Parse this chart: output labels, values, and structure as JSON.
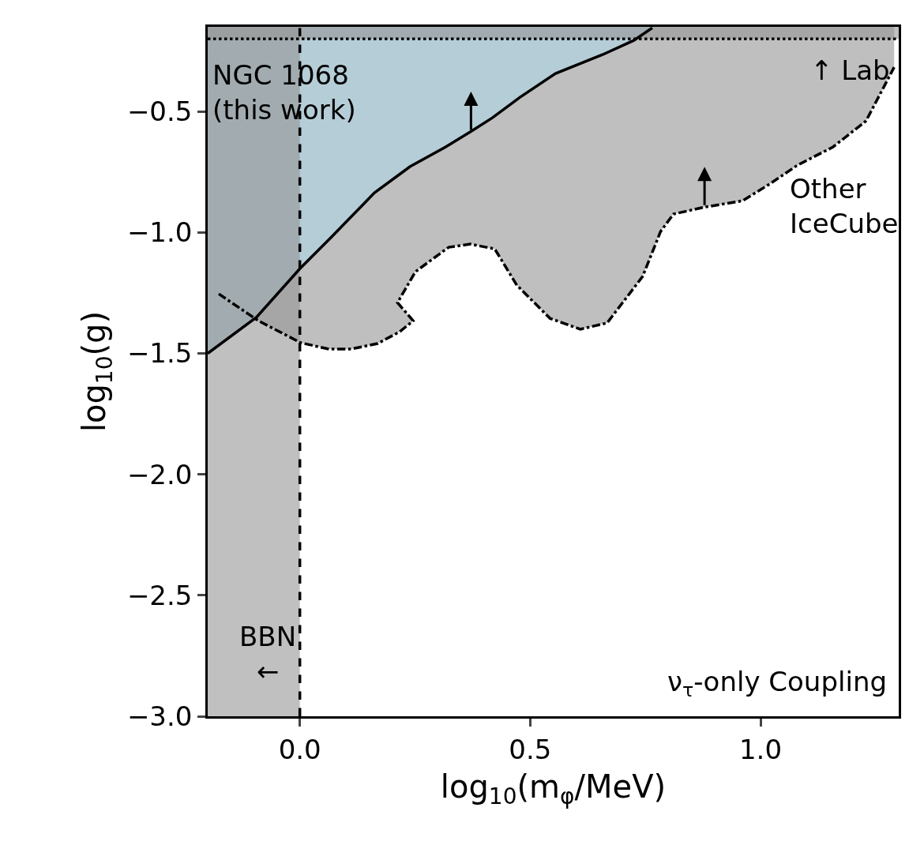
{
  "chart_data": {
    "type": "area",
    "xlabel": "log$_{10}$(m$_{φ}$/MeV)",
    "ylabel": "log$_{10}$(g)",
    "xlim": [
      -0.2,
      1.3
    ],
    "ylim": [
      -3.0,
      -0.15
    ],
    "xticks": [
      {
        "value": 0,
        "label": "0.0"
      },
      {
        "value": 0.5,
        "label": "0.5"
      },
      {
        "value": 1,
        "label": "1.0"
      }
    ],
    "yticks": [
      {
        "value": -3,
        "label": "−3.0"
      },
      {
        "value": -2.5,
        "label": "−2.5"
      },
      {
        "value": -2,
        "label": "−2.0"
      },
      {
        "value": -1.5,
        "label": "−1.5"
      },
      {
        "value": -1,
        "label": "−1.0"
      },
      {
        "value": -0.5,
        "label": "−0.5"
      }
    ],
    "series": [
      {
        "name": "Other\nIceCube",
        "color": "#bfbfbf",
        "line_style": "dashdot",
        "x": [
          -0.176,
          -0.09,
          0.002,
          0.063,
          0.111,
          0.169,
          0.217,
          0.246,
          0.212,
          0.251,
          0.323,
          0.37,
          0.423,
          0.471,
          0.543,
          0.609,
          0.667,
          0.744,
          0.783,
          0.811,
          0.879,
          0.961,
          1.022,
          1.08,
          1.157,
          1.229,
          1.29
        ],
        "values": [
          -1.254,
          -1.365,
          -1.456,
          -1.482,
          -1.482,
          -1.459,
          -1.41,
          -1.365,
          -1.29,
          -1.162,
          -1.061,
          -1.048,
          -1.068,
          -1.218,
          -1.355,
          -1.4,
          -1.374,
          -1.182,
          -0.996,
          -0.924,
          -0.895,
          -0.869,
          -0.797,
          -0.722,
          -0.647,
          -0.539,
          -0.317
        ]
      },
      {
        "name": "NGC 1068\n(this work)",
        "color": "#b5cdd7",
        "line_style": "solid",
        "x": [
          -0.2,
          -0.094,
          0,
          0.068,
          0.162,
          0.239,
          0.316,
          0.372,
          0.418,
          0.478,
          0.555,
          0.657,
          0.725,
          0.765
        ],
        "values": [
          -1.5,
          -1.35,
          -1.15,
          -1.02,
          -0.836,
          -0.728,
          -0.647,
          -0.582,
          -0.526,
          -0.441,
          -0.343,
          -0.265,
          -0.206,
          -0.154
        ]
      }
    ],
    "bands": [
      {
        "axis": "x",
        "from": -0.2,
        "to": 0,
        "label": "BBN\n←",
        "color": "#969696"
      },
      {
        "axis": "y",
        "from": -0.2,
        "to": -0.15,
        "label": "↑ Lab",
        "color": "#969696"
      }
    ],
    "ref_lines": [
      {
        "axis": "x",
        "value": 0,
        "line_style": "dashed"
      },
      {
        "axis": "y",
        "value": -0.2,
        "line_style": "dotted"
      }
    ],
    "annotations": [
      "ν$_{τ}$-only Coupling"
    ],
    "legend": false,
    "marker": "none"
  }
}
